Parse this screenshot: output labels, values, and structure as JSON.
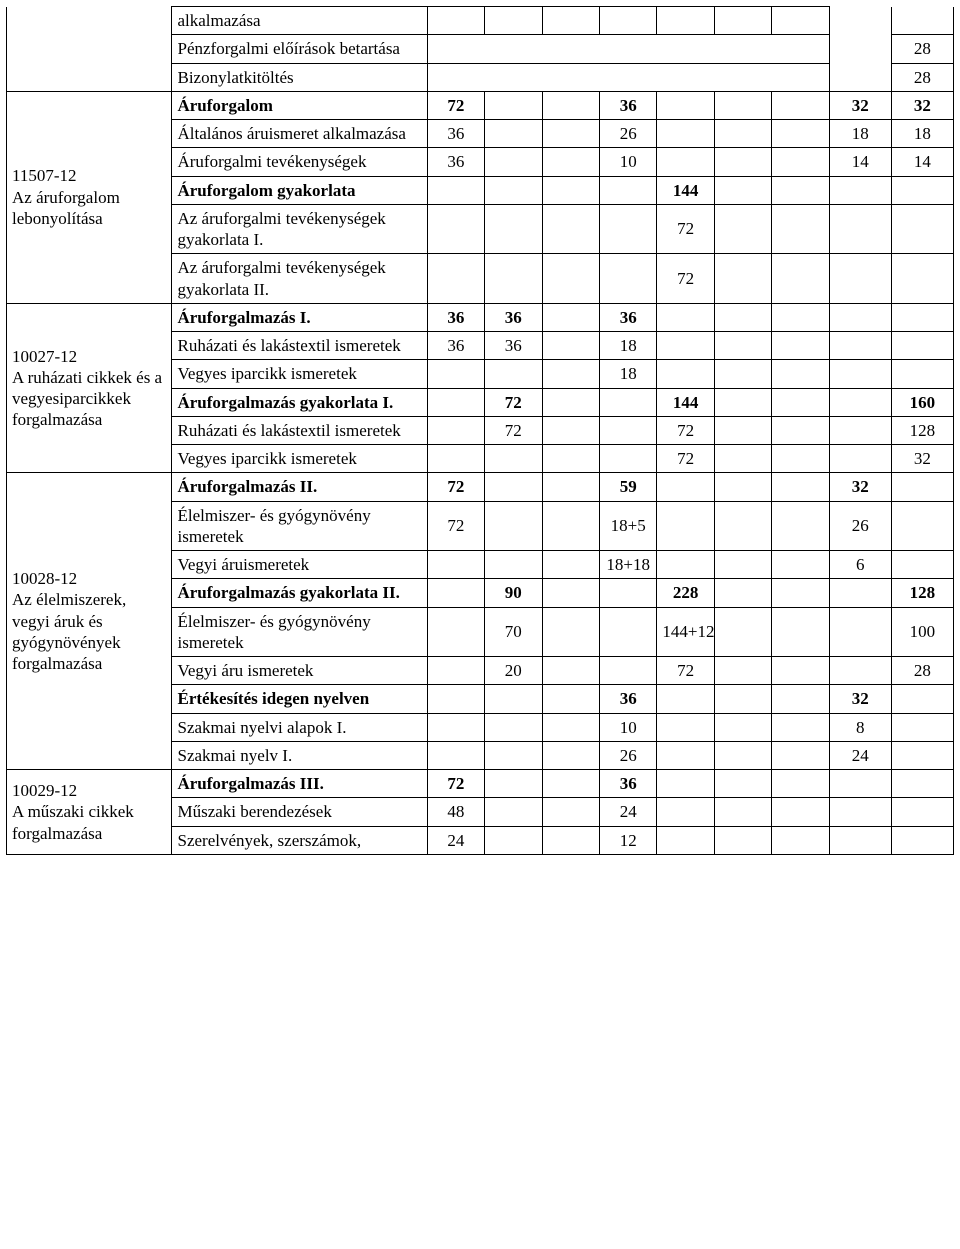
{
  "mods": {
    "m11507": {
      "code": "11507-12",
      "title": "Az áruforgalom lebonyolítása"
    },
    "m10027": {
      "code": "10027-12",
      "title": "A ruházati cikkek és a vegyesiparcikkek forgalmazása"
    },
    "m10028": {
      "code": "10028-12",
      "title": "Az élelmiszerek, vegyi áruk és gyógynövények forgalmazása"
    },
    "m10029": {
      "code": "10029-12",
      "title": "A műszaki cikkek forgalmazása"
    }
  },
  "rows": {
    "r0": {
      "sub": "alkalmazása"
    },
    "r1": {
      "sub": "Pénzforgalmi előírások betartása",
      "c9": "28"
    },
    "r2": {
      "sub": "Bizonylatkitöltés",
      "c9": "28"
    },
    "r3": {
      "sub": "Áruforgalom",
      "c1": "72",
      "c4": "36",
      "c8": "32",
      "c9": "32"
    },
    "r4": {
      "sub": "Általános áruismeret alkalmazása",
      "c1": "36",
      "c4": "26",
      "c8": "18",
      "c9": "18"
    },
    "r5": {
      "sub": "Áruforgalmi tevékenységek",
      "c1": "36",
      "c4": "10",
      "c8": "14",
      "c9": "14"
    },
    "r6": {
      "sub": "Áruforgalom gyakorlata",
      "c5": "144"
    },
    "r7": {
      "sub": "Az áruforgalmi tevékenységek gyakorlata I.",
      "c5": "72"
    },
    "r8": {
      "sub": "Az áruforgalmi tevékenységek gyakorlata II.",
      "c5": "72"
    },
    "r9": {
      "sub": "Áruforgalmazás I.",
      "c1": "36",
      "c2": "36",
      "c4": "36"
    },
    "r10": {
      "sub": "Ruházati és lakástextil ismeretek",
      "c1": "36",
      "c2": "36",
      "c4": "18"
    },
    "r11": {
      "sub": "Vegyes iparcikk ismeretek",
      "c4": "18"
    },
    "r12": {
      "sub": "Áruforgalmazás gyakorlata I.",
      "c2": "72",
      "c5": "144",
      "c9": "160"
    },
    "r13": {
      "sub": "Ruházati és lakástextil ismeretek",
      "c2": "72",
      "c5": "72",
      "c9": "128"
    },
    "r14": {
      "sub": "Vegyes iparcikk ismeretek",
      "c5": "72",
      "c9": "32"
    },
    "r15": {
      "sub": "Áruforgalmazás II.",
      "c1": "72",
      "c4": "59",
      "c8": "32"
    },
    "r16": {
      "sub": "Élelmiszer- és gyógynövény ismeretek",
      "c1": "72",
      "c4": "18+5",
      "c8": "26"
    },
    "r17": {
      "sub": "Vegyi áruismeretek",
      "c4": "18+18",
      "c8": "6"
    },
    "r18": {
      "sub": "Áruforgalmazás gyakorlata II.",
      "c2": "90",
      "c5": "228",
      "c9": "128"
    },
    "r19": {
      "sub": "Élelmiszer- és gyógynövény ismeretek",
      "c2": "70",
      "c5": "144+12",
      "c9": "100"
    },
    "r20": {
      "sub": "Vegyi áru ismeretek",
      "c2": "20",
      "c5": "72",
      "c9": "28"
    },
    "r21": {
      "sub": "Értékesítés idegen nyelven",
      "c4": "36",
      "c8": "32"
    },
    "r22": {
      "sub": "Szakmai nyelvi alapok I.",
      "c4": "10",
      "c8": "8"
    },
    "r23": {
      "sub": "Szakmai nyelv I.",
      "c4": "26",
      "c8": "24"
    },
    "r24": {
      "sub": "Áruforgalmazás III.",
      "c1": "72",
      "c4": "36"
    },
    "r25": {
      "sub": "Műszaki berendezések",
      "c1": "48",
      "c4": "24"
    },
    "r26": {
      "sub": "Szerelvények, szerszámok,",
      "c1": "24",
      "c4": "12"
    }
  }
}
